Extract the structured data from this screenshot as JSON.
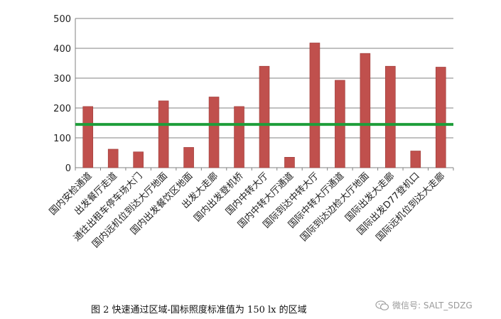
{
  "chart_data": {
    "type": "bar",
    "title": "",
    "xlabel": "",
    "ylabel": "",
    "ylim": [
      0,
      500
    ],
    "yticks": [
      0,
      100,
      200,
      300,
      400,
      500
    ],
    "grid": true,
    "legend": "none",
    "categories": [
      "国内安检通道",
      "出发餐厅走道",
      "通往出租车停车场大门",
      "国内远机位到达大厅地面",
      "国内出发餐饮区地面",
      "出发大走廊",
      "国内出发登机桥",
      "国内中转大厅",
      "国内中转大厅通道",
      "国际到达中转大厅",
      "国际中转大厅通道",
      "国际到达边检大厅地面",
      "国际出发大走廊",
      "国际出发D77登机口",
      "国际远机位到达大走廊"
    ],
    "series": [
      {
        "values": [
          205,
          62,
          53,
          224,
          68,
          237,
          205,
          340,
          35,
          418,
          293,
          383,
          340,
          56,
          337
        ]
      }
    ],
    "reference_line": {
      "value": 145,
      "color": "#1e9e3a"
    },
    "bar_color": "#c0504d",
    "bar_edge_color": "#9c3b38",
    "grid_color": "#808080"
  },
  "caption": "图 2  快速通过区域-国标照度标准值为 150 lx 的区域",
  "watermark": {
    "text": "微信号: SALT_SDZG",
    "icon": "wechat-icon"
  }
}
